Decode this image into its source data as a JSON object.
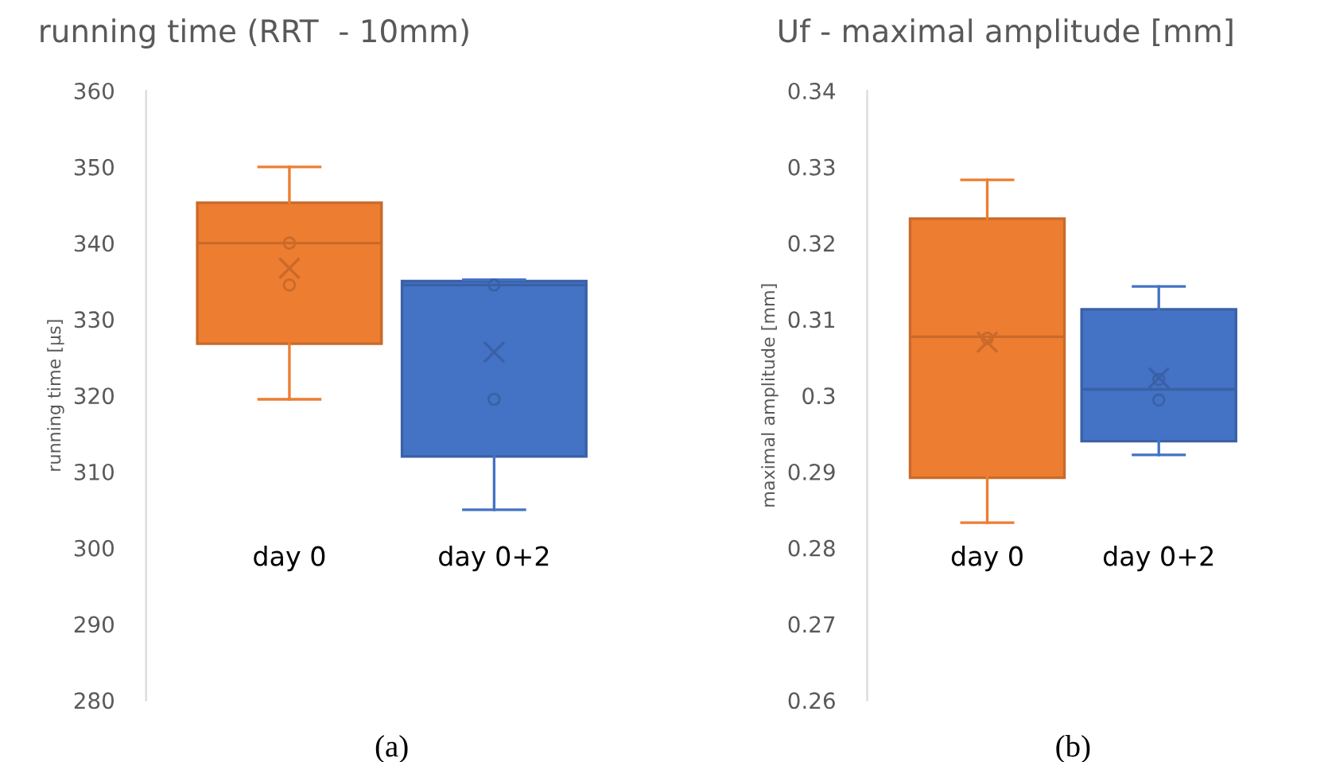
{
  "chart_data": [
    {
      "type": "box",
      "title": "running time (RRT  - 10mm)",
      "ylabel": "running time [µs]",
      "categories": [
        "day 0",
        "day 0+2"
      ],
      "colors": [
        "#ed7d31",
        "#4472c4"
      ],
      "boxes": [
        {
          "low": 319.5,
          "q1": 326.8,
          "median": 340,
          "q3": 345.3,
          "high": 350,
          "mean": 336.7
        },
        {
          "low": 305,
          "q1": 312,
          "median": 334.5,
          "q3": 335,
          "high": 335.2,
          "mean": 325.7
        }
      ],
      "series": [
        {
          "type": "scatter",
          "x": [
            "day 0",
            "day 0"
          ],
          "values": [
            340,
            334.5
          ],
          "color": "#c96a2a"
        },
        {
          "type": "scatter",
          "x": [
            "day 0+2",
            "day 0+2"
          ],
          "values": [
            334.5,
            319.5
          ],
          "color": "#3a61a7"
        }
      ],
      "marker": "circle",
      "ylim": [
        280,
        360
      ],
      "yticks": [
        280,
        290,
        300,
        310,
        320,
        330,
        340,
        350,
        360
      ],
      "grid": false,
      "annotations": [
        "(a)"
      ]
    },
    {
      "type": "box",
      "title": "Uf - maximal amplitude [mm]",
      "ylabel": "maximal amplitude [mm]",
      "categories": [
        "day 0",
        "day 0+2"
      ],
      "colors": [
        "#ed7d31",
        "#4472c4"
      ],
      "boxes": [
        {
          "low": 0.2833,
          "q1": 0.2892,
          "median": 0.3077,
          "q3": 0.3232,
          "high": 0.3283,
          "mean": 0.307
        },
        {
          "low": 0.2922,
          "q1": 0.294,
          "median": 0.3008,
          "q3": 0.3113,
          "high": 0.3143,
          "mean": 0.3023
        }
      ],
      "series": [
        {
          "type": "scatter",
          "x": [
            "day 0"
          ],
          "values": [
            0.3075
          ],
          "color": "#c96a2a"
        },
        {
          "type": "scatter",
          "x": [
            "day 0+2",
            "day 0+2"
          ],
          "values": [
            0.3021,
            0.2994
          ],
          "color": "#3a61a7"
        }
      ],
      "marker": "circle",
      "ylim": [
        0.26,
        0.34
      ],
      "yticks": [
        0.26,
        0.27,
        0.28,
        0.29,
        0.3,
        0.31,
        0.32,
        0.33,
        0.34
      ],
      "grid": false,
      "annotations": [
        "(b)"
      ]
    }
  ]
}
